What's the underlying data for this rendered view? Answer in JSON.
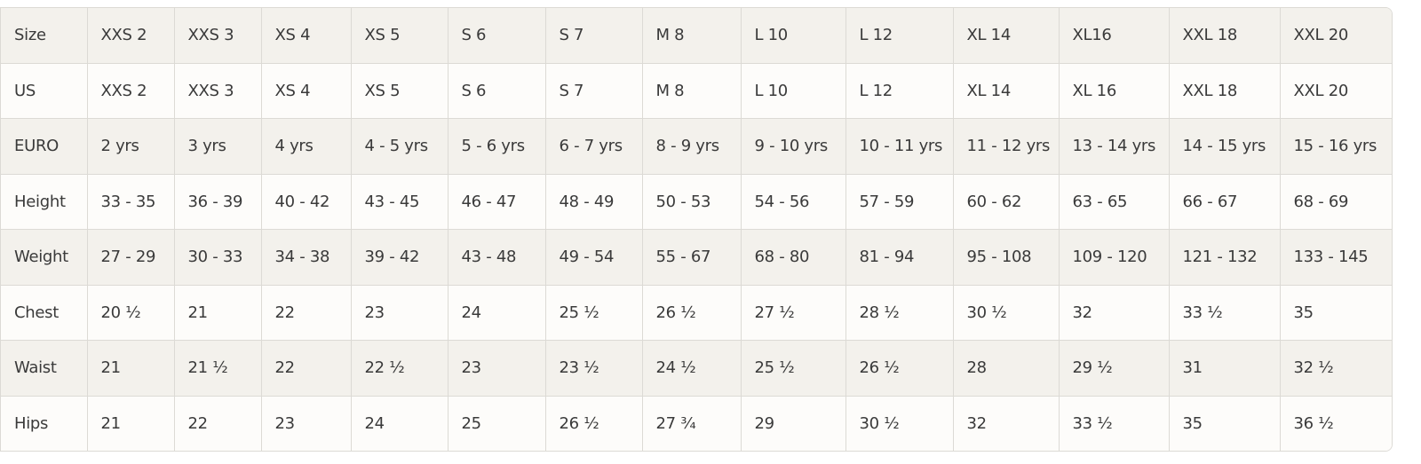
{
  "table": {
    "header": [
      "Size",
      "XXS 2",
      "XXS 3",
      "XS 4",
      "XS 5",
      "S 6",
      "S 7",
      "M 8",
      "L 10",
      "L 12",
      "XL 14",
      "XL16",
      "XXL 18",
      "XXL 20"
    ],
    "rows": [
      [
        "US",
        "XXS 2",
        "XXS 3",
        "XS 4",
        "XS 5",
        "S 6",
        "S 7",
        "M 8",
        "L 10",
        "L 12",
        "XL 14",
        "XL 16",
        "XXL 18",
        "XXL 20"
      ],
      [
        "EURO",
        "2 yrs",
        "3 yrs",
        "4 yrs",
        "4 - 5 yrs",
        "5 - 6 yrs",
        "6 - 7 yrs",
        "8 - 9 yrs",
        "9 - 10 yrs",
        "10 - 11 yrs",
        "11 - 12 yrs",
        "13 - 14 yrs",
        "14 - 15 yrs",
        "15 - 16 yrs"
      ],
      [
        "Height",
        "33 - 35",
        "36 - 39",
        "40 - 42",
        "43 - 45",
        "46 - 47",
        "48 - 49",
        "50 - 53",
        "54 - 56",
        "57 - 59",
        "60 - 62",
        "63 - 65",
        "66 - 67",
        "68 - 69"
      ],
      [
        "Weight",
        "27 - 29",
        "30 - 33",
        "34 - 38",
        "39 - 42",
        "43 - 48",
        "49 - 54",
        "55 - 67",
        "68 - 80",
        "81 - 94",
        "95 - 108",
        "109 - 120",
        "121 - 132",
        "133 - 145"
      ],
      [
        "Chest",
        "20 ½",
        "21",
        "22",
        "23",
        "24",
        "25 ½",
        "26 ½",
        "27 ½",
        "28 ½",
        "30 ½",
        "32",
        "33 ½",
        "35"
      ],
      [
        "Waist",
        "21",
        "21 ½",
        "22",
        "22 ½",
        "23",
        "23 ½",
        "24 ½",
        "25 ½",
        "26 ½",
        "28",
        "29 ½",
        "31",
        "32 ½"
      ],
      [
        "Hips",
        "21",
        "22",
        "23",
        "24",
        "25",
        "26 ½",
        "27 ¾",
        "29",
        "30 ½",
        "32",
        "33 ½",
        "35",
        "36 ½"
      ]
    ]
  }
}
